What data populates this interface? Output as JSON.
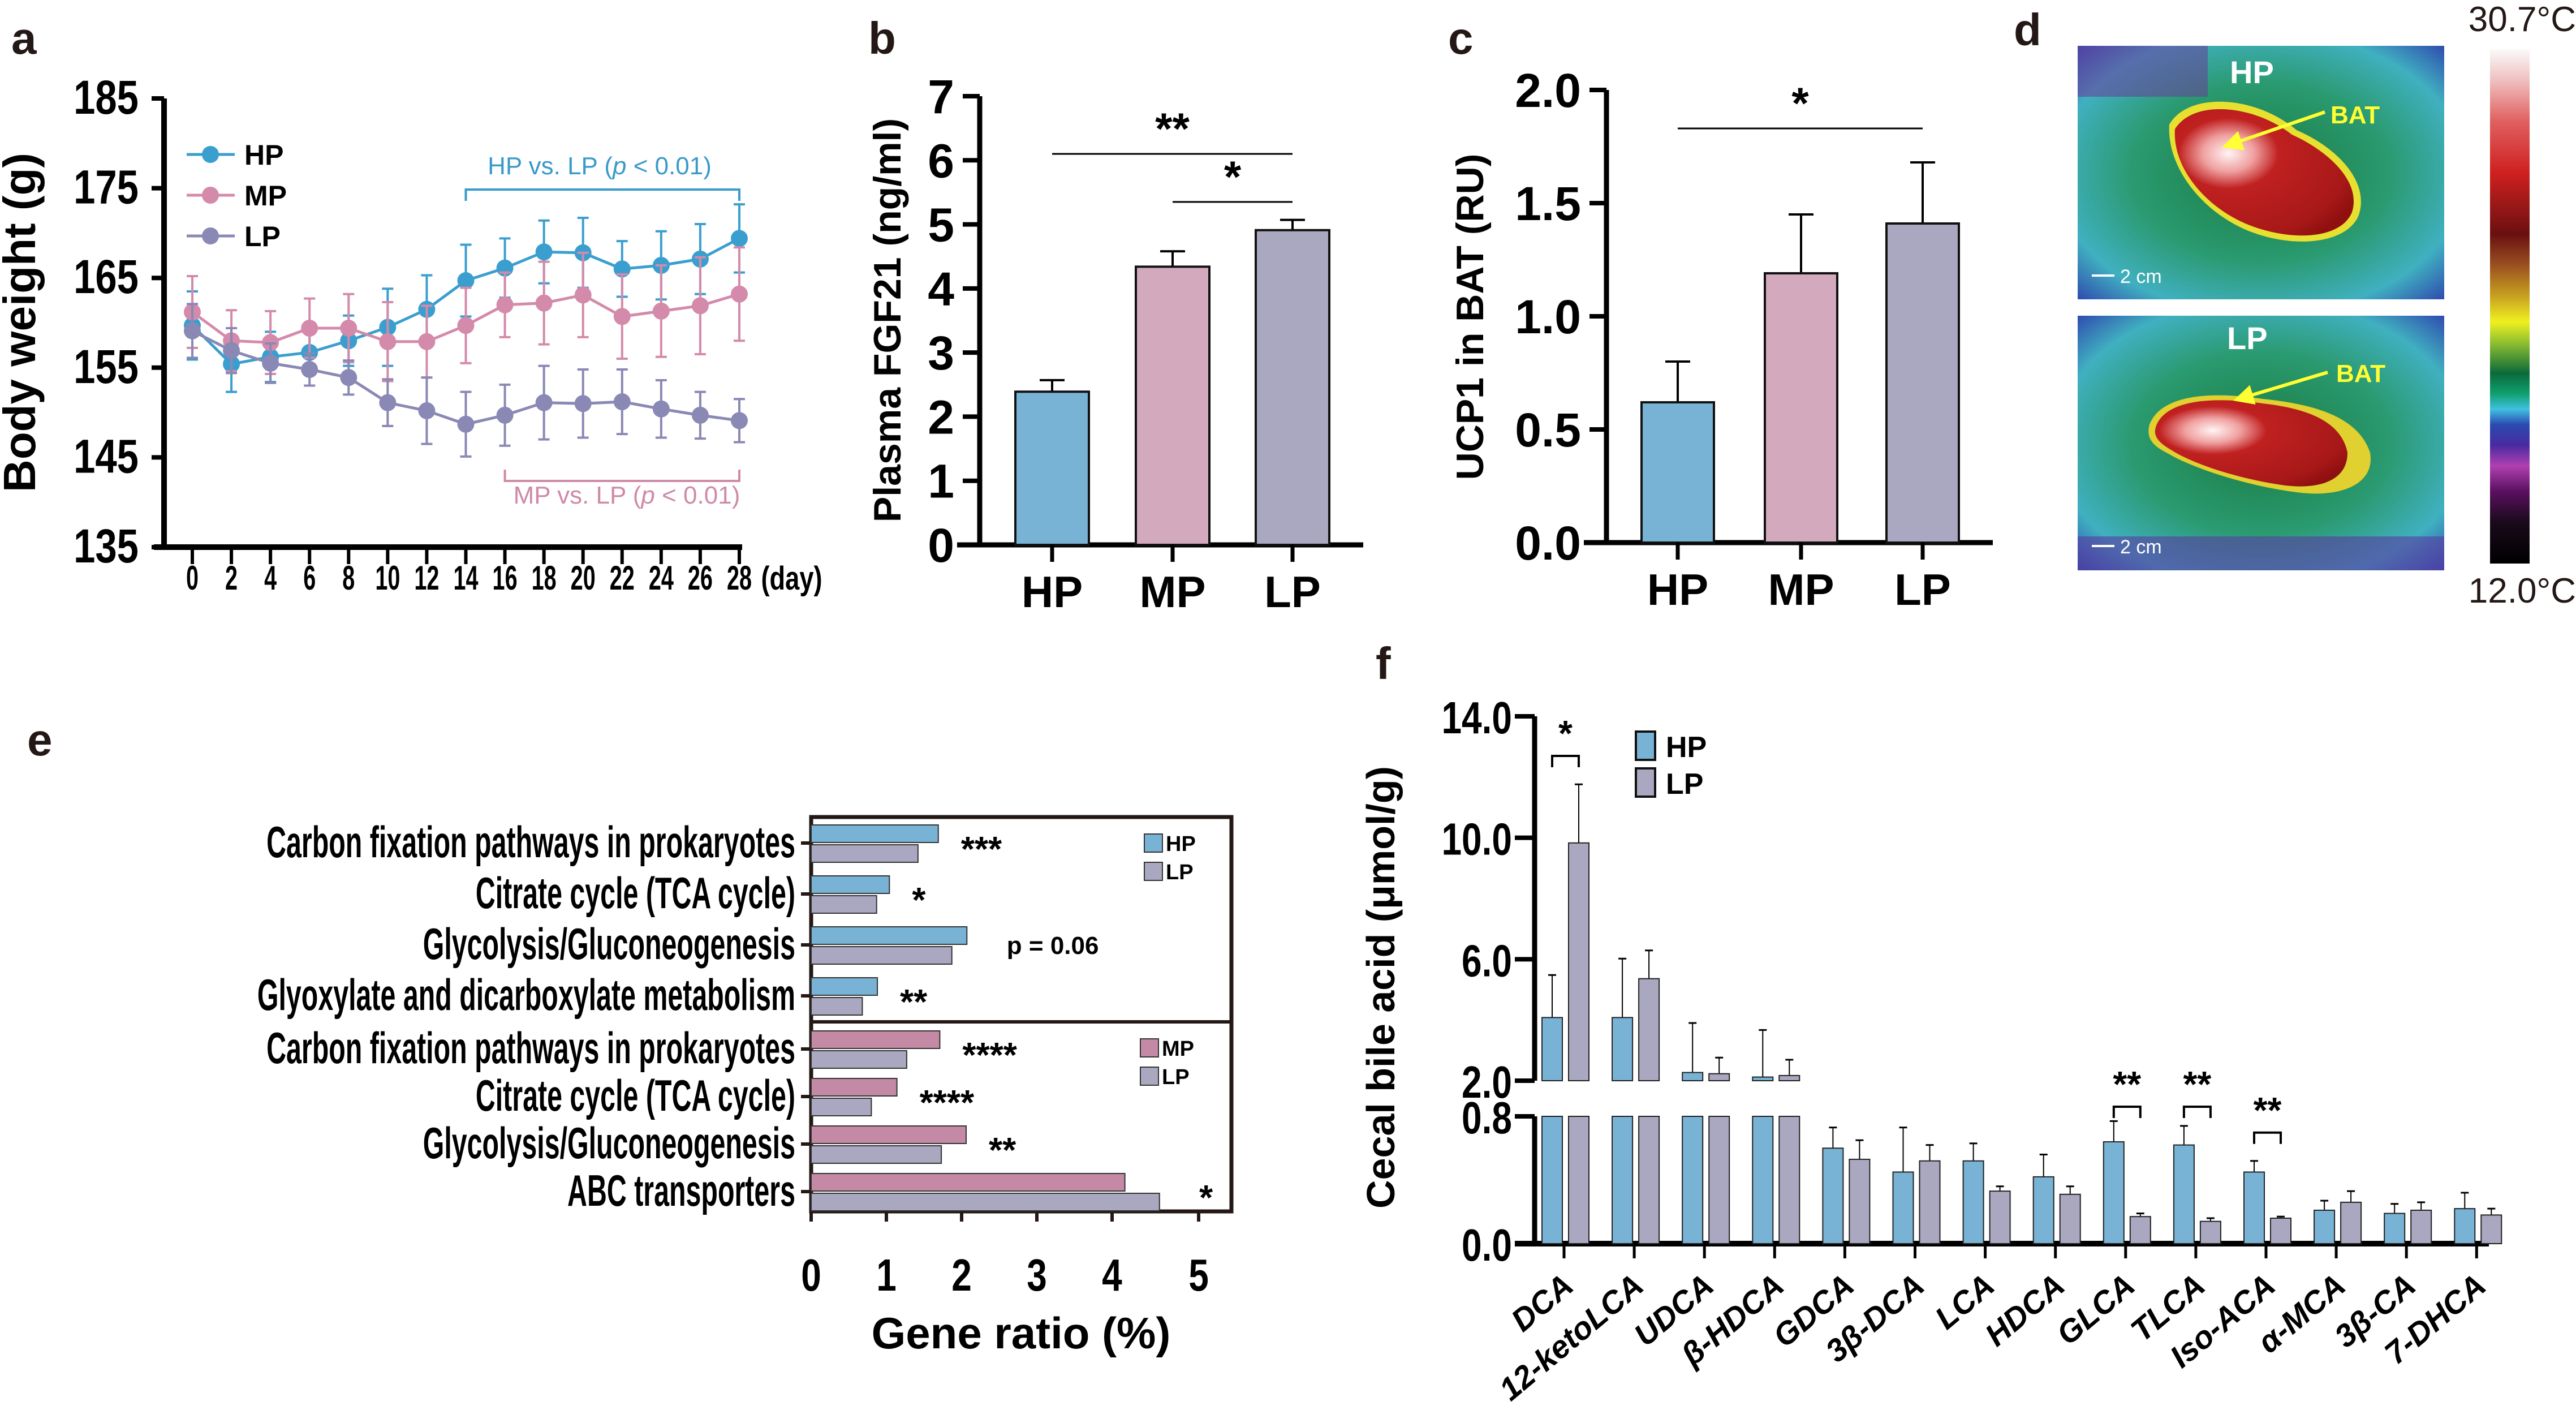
{
  "colors": {
    "HP": "#3a9fcf",
    "MP": "#d48aaa",
    "LP": "#8a88b4",
    "HP_bar": "#78b3d6",
    "MP_bar": "#d3a9bd",
    "LP_bar": "#a9a8c0",
    "MP_bar_e": "#c48aa5",
    "HP_note": "#3a9ac9",
    "MP_note": "#cf8aa8",
    "BAT_label": "#ffff33"
  },
  "panel_labels": {
    "a": "a",
    "b": "b",
    "c": "c",
    "d": "d",
    "e": "e",
    "f": "f"
  },
  "chart_data": [
    {
      "id": "a",
      "type": "line",
      "title": "",
      "xlabel": "(day)",
      "ylabel": "Body weight (g)",
      "ylim": [
        135,
        185
      ],
      "yticks": [
        135,
        145,
        155,
        165,
        175,
        185
      ],
      "x": [
        0,
        2,
        4,
        6,
        8,
        10,
        12,
        14,
        16,
        18,
        20,
        22,
        24,
        26,
        28
      ],
      "series": [
        {
          "name": "HP",
          "values": [
            159.7,
            155.4,
            156.2,
            156.7,
            158.0,
            159.5,
            161.5,
            164.7,
            166.1,
            167.9,
            167.8,
            166.0,
            166.4,
            167.1,
            169.4
          ],
          "error": [
            3.8,
            3.1,
            2.8,
            2.5,
            2.8,
            4.3,
            3.8,
            4.0,
            3.3,
            3.5,
            3.9,
            3.1,
            3.8,
            3.9,
            3.8
          ]
        },
        {
          "name": "MP",
          "values": [
            161.2,
            158.0,
            157.8,
            159.4,
            159.4,
            157.9,
            157.9,
            159.7,
            162.0,
            162.2,
            163.1,
            160.7,
            161.3,
            161.9,
            163.2
          ],
          "error": [
            4.0,
            3.4,
            3.5,
            3.3,
            3.8,
            4.4,
            4.0,
            4.2,
            3.6,
            4.6,
            4.7,
            4.7,
            5.1,
            5.4,
            5.2
          ]
        },
        {
          "name": "LP",
          "values": [
            159.1,
            156.9,
            155.5,
            154.8,
            153.9,
            151.1,
            150.2,
            148.7,
            149.7,
            151.1,
            151.0,
            151.2,
            150.4,
            149.7,
            149.1
          ],
          "error": [
            3.0,
            2.5,
            2.2,
            1.8,
            1.9,
            2.6,
            3.7,
            3.6,
            3.4,
            4.1,
            3.8,
            3.6,
            3.2,
            2.6,
            2.4
          ]
        }
      ],
      "legend": [
        "HP",
        "MP",
        "LP"
      ],
      "legend_position": "top-left",
      "annotations": [
        {
          "text_pre": "HP vs. LP (",
          "text_p": "p",
          "text_post": " < 0.01)",
          "from_day": 14,
          "to_day": 28,
          "position": "above"
        },
        {
          "text_pre": "MP vs. LP (",
          "text_p": "p",
          "text_post": " < 0.01)",
          "from_day": 16,
          "to_day": 28,
          "position": "below"
        }
      ]
    },
    {
      "id": "b",
      "type": "bar",
      "ylabel": "Plasma FGF21 (ng/ml)",
      "ylim": [
        0,
        7
      ],
      "yticks": [
        0,
        1,
        2,
        3,
        4,
        5,
        6,
        7
      ],
      "categories": [
        "HP",
        "MP",
        "LP"
      ],
      "values": [
        2.39,
        4.34,
        4.91
      ],
      "error": [
        0.18,
        0.24,
        0.16
      ],
      "significance": [
        {
          "from": "HP",
          "to": "LP",
          "label": "**",
          "y": 6.1
        },
        {
          "from": "MP",
          "to": "LP",
          "label": "*",
          "y": 5.35
        }
      ]
    },
    {
      "id": "c",
      "type": "bar",
      "ylabel": "UCP1 in BAT (RU)",
      "ylim": [
        0,
        2.0
      ],
      "yticks": [
        "0.0",
        "0.5",
        "1.0",
        "1.5",
        "2.0"
      ],
      "categories": [
        "HP",
        "MP",
        "LP"
      ],
      "values": [
        0.62,
        1.19,
        1.41
      ],
      "error": [
        0.18,
        0.26,
        0.27
      ],
      "significance": [
        {
          "from": "HP",
          "to": "LP",
          "label": "*",
          "y": 1.83
        }
      ]
    },
    {
      "id": "e",
      "type": "bar",
      "orientation": "horizontal",
      "xlabel": "Gene ratio (%)",
      "xlim": [
        0,
        5
      ],
      "xticks": [
        0,
        1,
        2,
        3,
        4,
        5
      ],
      "groups": [
        {
          "legend": [
            "HP",
            "LP"
          ],
          "categories": [
            "Carbon fixation pathways in prokaryotes",
            "Citrate cycle (TCA cycle)",
            "Glycolysis/Gluconeogenesis",
            "Glyoxylate and dicarboxylate metabolism"
          ],
          "series": [
            {
              "name": "HP",
              "values": [
                1.69,
                1.04,
                2.07,
                0.88
              ]
            },
            {
              "name": "LP",
              "values": [
                1.42,
                0.87,
                1.87,
                0.68
              ]
            }
          ],
          "annotations": [
            "***",
            "*",
            "p = 0.06",
            "**"
          ]
        },
        {
          "legend": [
            "MP",
            "LP"
          ],
          "categories": [
            "Carbon fixation pathways in prokaryotes",
            "Citrate cycle (TCA cycle)",
            "Glycolysis/Gluconeogenesis",
            "ABC transporters"
          ],
          "series": [
            {
              "name": "MP",
              "values": [
                1.71,
                1.14,
                2.06,
                4.17
              ]
            },
            {
              "name": "LP",
              "values": [
                1.27,
                0.8,
                1.73,
                4.63
              ]
            }
          ],
          "annotations": [
            "****",
            "****",
            "**",
            "*"
          ]
        }
      ]
    },
    {
      "id": "f",
      "type": "bar",
      "ylabel": "Cecal bile acid (μmol/g)",
      "axis_break": {
        "lower": [
          0,
          0.8
        ],
        "upper": [
          2.0,
          14.0
        ]
      },
      "yticks_lower": [
        "0.0",
        "0.8"
      ],
      "yticks_upper": [
        "2.0",
        "6.0",
        "10.0",
        "14.0"
      ],
      "categories": [
        "DCA",
        "12-ketoLCA",
        "UDCA",
        "β-HDCA",
        "GDCA",
        "3β-DCA",
        "LCA",
        "HDCA",
        "GLCA",
        "TLCA",
        "Iso-ACA",
        "α-MCA",
        "3β-CA",
        "7-DHCA"
      ],
      "series": [
        {
          "name": "HP",
          "values": [
            4.08,
            4.08,
            2.27,
            2.12,
            0.6,
            0.45,
            0.52,
            0.42,
            0.64,
            0.62,
            0.45,
            0.21,
            0.19,
            0.22
          ],
          "error": [
            1.4,
            1.94,
            1.63,
            1.55,
            0.13,
            0.28,
            0.11,
            0.14,
            0.13,
            0.12,
            0.07,
            0.06,
            0.06,
            0.1
          ]
        },
        {
          "name": "LP",
          "values": [
            9.83,
            5.36,
            2.23,
            2.17,
            0.53,
            0.52,
            0.33,
            0.31,
            0.17,
            0.14,
            0.16,
            0.26,
            0.21,
            0.18
          ],
          "error": [
            1.93,
            0.93,
            0.53,
            0.52,
            0.12,
            0.1,
            0.03,
            0.05,
            0.02,
            0.02,
            0.01,
            0.07,
            0.05,
            0.04
          ]
        }
      ],
      "legend": [
        "HP",
        "LP"
      ],
      "legend_position": "top-left",
      "significance": [
        {
          "category": "DCA",
          "label": "*"
        },
        {
          "category": "GLCA",
          "label": "**"
        },
        {
          "category": "TLCA",
          "label": "**"
        },
        {
          "category": "Iso-ACA",
          "label": "**"
        }
      ]
    }
  ],
  "panel_d": {
    "images": [
      {
        "group": "HP",
        "arrow_label": "BAT",
        "scale_bar": "2 cm"
      },
      {
        "group": "LP",
        "arrow_label": "BAT",
        "scale_bar": "2 cm"
      }
    ],
    "colorbar": {
      "max_label": "30.7°C",
      "min_label": "12.0°C",
      "max": 30.7,
      "min": 12.0
    }
  }
}
